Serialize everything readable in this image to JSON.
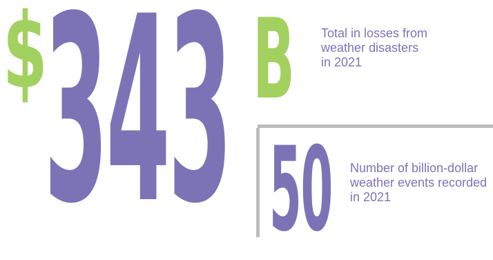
{
  "colors": {
    "purple": "#7c73b6",
    "green": "#a3d160",
    "gray_rule": "#bdbdbd",
    "caption_text": "#7c73b6"
  },
  "losses": {
    "currency_symbol": "$",
    "amount": "343",
    "unit": "B",
    "caption": "Total in losses from\nweather disasters\nin 2021"
  },
  "events": {
    "count": "50",
    "caption": "Number of billion-dollar\nweather events recorded\nin 2021"
  }
}
